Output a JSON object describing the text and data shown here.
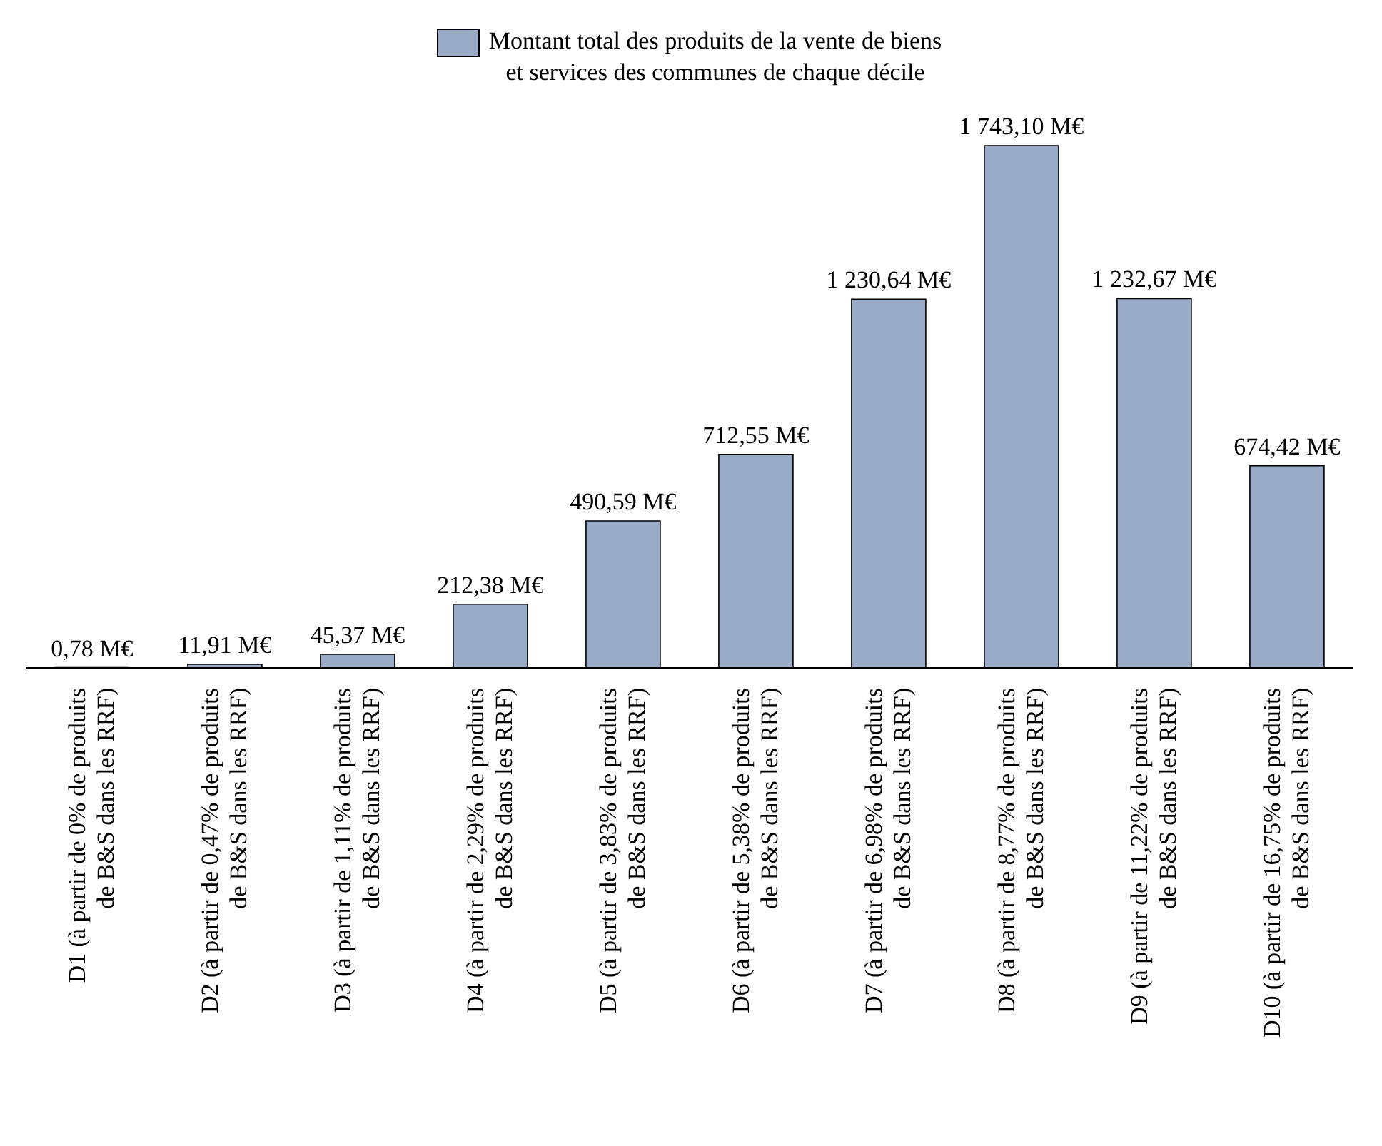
{
  "chart_data": {
    "type": "bar",
    "categories": [
      "D1 (à partir de 0% de produits\nde B&S dans les RRF)",
      "D2 (à partir de 0,47% de produits\nde B&S dans les RRF)",
      "D3 (à partir de 1,11% de produits\nde B&S dans les RRF)",
      "D4 (à partir de 2,29% de produits\nde B&S dans les RRF)",
      "D5 (à partir de 3,83% de produits\nde B&S dans les RRF)",
      "D6 (à partir de 5,38% de produits\nde B&S dans les RRF)",
      "D7 (à partir de 6,98% de produits\nde B&S dans les RRF)",
      "D8 (à partir de 8,77% de produits\nde B&S dans les RRF)",
      "D9 (à partir de 11,22% de produits\nde B&S dans les RRF)",
      "D10 (à partir de 16,75% de produits\nde B&S dans les RRF)"
    ],
    "series": [
      {
        "name": "Montant total des produits de la vente de biens\net services des communes de chaque décile",
        "color": "#9aabc8",
        "values": [
          0.78,
          11.91,
          45.37,
          212.38,
          490.59,
          712.55,
          1230.64,
          1743.1,
          1232.67,
          674.42
        ],
        "value_labels": [
          "0,78 M€",
          "11,91 M€",
          "45,37 M€",
          "212,38 M€",
          "490,59 M€",
          "712,55 M€",
          "1 230,64 M€",
          "1 743,10 M€",
          "1 232,67 M€",
          "674,42 M€"
        ]
      }
    ],
    "legend": "top"
  }
}
